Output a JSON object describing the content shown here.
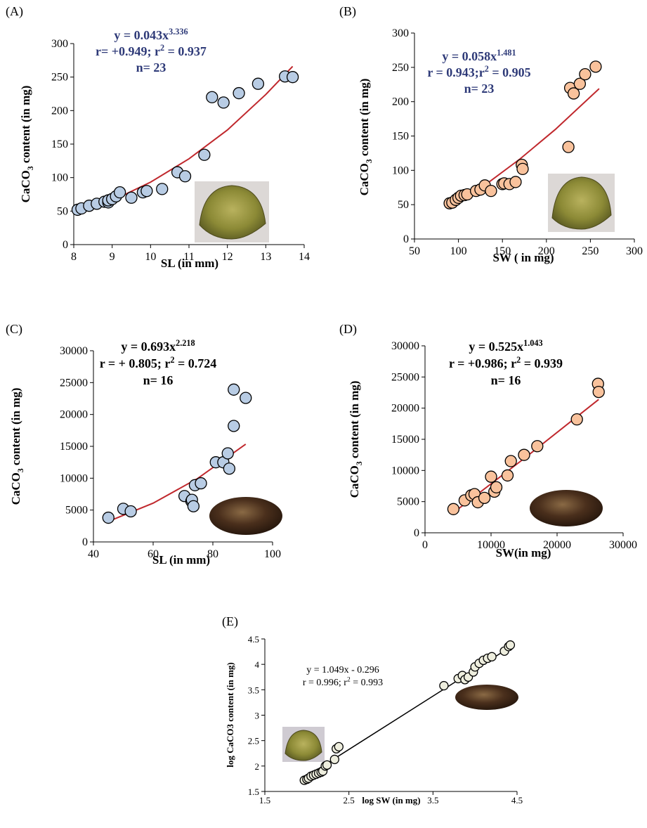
{
  "chart_data": [
    {
      "type": "scatter",
      "panel_label": "(A)",
      "annotation": [
        [
          "y = 0.043x",
          {
            "sup": "3.336"
          }
        ],
        [
          "r= +0.949; r",
          {
            "sup": "2"
          },
          " = 0.937"
        ],
        [
          "n= 23"
        ]
      ],
      "annotation_color": "#2e3a78",
      "x_label": [
        "SL (in mm)"
      ],
      "y_label": [
        "CaCO",
        {
          "sub": "3"
        },
        " content (in mg)"
      ],
      "x": [
        8.1,
        8.2,
        8.4,
        8.6,
        8.8,
        8.9,
        8.9,
        9.0,
        9.1,
        9.2,
        9.5,
        9.8,
        9.9,
        10.3,
        10.7,
        10.9,
        11.4,
        11.6,
        11.9,
        12.3,
        12.8,
        13.5,
        13.7
      ],
      "values": [
        52,
        54,
        58,
        61,
        64,
        63,
        66,
        68,
        72,
        78,
        70,
        78,
        80,
        83,
        108,
        102,
        134,
        220,
        212,
        226,
        240,
        251,
        250
      ],
      "point_color": "#b8cce4",
      "fit": {
        "color": "#c0282d",
        "x": [
          8.1,
          9,
          10,
          11,
          12,
          13,
          13.7
        ],
        "values": [
          46,
          65.6,
          93.2,
          128,
          171,
          224,
          266
        ]
      },
      "xlim": [
        8,
        14
      ],
      "ylim": [
        0,
        300
      ],
      "xticks": [
        8,
        9,
        10,
        11,
        12,
        13,
        14
      ],
      "yticks": [
        0,
        50,
        100,
        150,
        200,
        250,
        300
      ]
    },
    {
      "type": "scatter",
      "panel_label": "(B)",
      "annotation": [
        [
          "y = 0.058x",
          {
            "sup": "1.481"
          }
        ],
        [
          "r = 0.943;r",
          {
            "sup": "2"
          },
          " = 0.905"
        ],
        [
          "n= 23"
        ]
      ],
      "annotation_color": "#2e3a78",
      "x_label": [
        "SW ( in mg)"
      ],
      "y_label": [
        "CaCO",
        {
          "sub": "3"
        },
        " content (in mg)"
      ],
      "x": [
        90,
        93,
        97,
        100,
        103,
        107,
        110,
        120,
        125,
        130,
        137,
        150,
        152,
        158,
        165,
        172,
        173,
        225,
        227,
        231,
        238,
        244,
        256
      ],
      "values": [
        52,
        53,
        57,
        60,
        63,
        64,
        65,
        70,
        72,
        78,
        70,
        80,
        81,
        80,
        83,
        108,
        102,
        134,
        220,
        212,
        226,
        240,
        251
      ],
      "point_color": "#f9c29c",
      "fit": {
        "color": "#c0282d",
        "x": [
          90,
          130,
          170,
          210,
          260
        ],
        "values": [
          45.5,
          78.4,
          116.6,
          159.4,
          219
        ]
      },
      "xlim": [
        50,
        300
      ],
      "ylim": [
        0,
        300
      ],
      "xticks": [
        50,
        100,
        150,
        200,
        250,
        300
      ],
      "yticks": [
        0,
        50,
        100,
        150,
        200,
        250,
        300
      ]
    },
    {
      "type": "scatter",
      "panel_label": "(C)",
      "annotation": [
        [
          "y = 0.693x",
          {
            "sup": "2.218"
          }
        ],
        [
          "r = + 0.805; r",
          {
            "sup": "2"
          },
          " = 0.724"
        ],
        [
          "n= 16"
        ]
      ],
      "annotation_color": "#000000",
      "x_label": [
        "SL  (in mm)"
      ],
      "y_label": [
        "CaCO",
        {
          "sub": "3"
        },
        " content (in mg)"
      ],
      "x": [
        45,
        50,
        52.5,
        70.5,
        72.8,
        73,
        73.5,
        74,
        76,
        81,
        83.5,
        85,
        85.5,
        87,
        87,
        91
      ],
      "values": [
        3800,
        5200,
        4800,
        7200,
        6400,
        6600,
        5600,
        8900,
        9200,
        12500,
        12500,
        13900,
        11500,
        18200,
        23900,
        22600
      ],
      "point_color": "#b8cce4",
      "fit": {
        "color": "#c0282d",
        "x": [
          45,
          60,
          75,
          91
        ],
        "values": [
          3218,
          6085,
          9986,
          15343
        ]
      },
      "xlim": [
        40,
        100
      ],
      "ylim": [
        0,
        30000
      ],
      "xticks": [
        40,
        60,
        80,
        100
      ],
      "yticks": [
        0,
        5000,
        10000,
        15000,
        20000,
        25000,
        30000
      ]
    },
    {
      "type": "scatter",
      "panel_label": "(D)",
      "annotation": [
        [
          "y = 0.525x",
          {
            "sup": "1.043"
          }
        ],
        [
          "r = +0.986; r",
          {
            "sup": "2"
          },
          " = 0.939"
        ],
        [
          "n= 16"
        ]
      ],
      "annotation_color": "#000000",
      "x_label": [
        "SW(in mg)"
      ],
      "y_label": [
        "CaCO",
        {
          "sub": "3"
        },
        " content (in mg)"
      ],
      "x": [
        4300,
        6000,
        7000,
        7500,
        8000,
        9000,
        10000,
        10500,
        10800,
        12500,
        13000,
        15000,
        17000,
        23000,
        26200,
        26300
      ],
      "values": [
        3800,
        5200,
        6000,
        6200,
        4900,
        5600,
        9000,
        6600,
        7300,
        9200,
        11500,
        12500,
        13900,
        18200,
        23900,
        22600
      ],
      "point_color": "#f9c29c",
      "fit": {
        "color": "#c0282d",
        "x": [
          4300,
          15000,
          26300
        ],
        "values": [
          3233,
          11912,
          21390
        ]
      },
      "xlim": [
        0,
        30000
      ],
      "ylim": [
        0,
        30000
      ],
      "xticks": [
        0,
        10000,
        20000,
        30000
      ],
      "yticks": [
        0,
        5000,
        10000,
        15000,
        20000,
        25000,
        30000
      ]
    },
    {
      "type": "scatter",
      "panel_label": "(E)",
      "annotation": [
        [
          "y = 1.049x - 0.296"
        ],
        [
          "r = 0.996; r",
          {
            "sup": "2"
          },
          " = 0.993"
        ]
      ],
      "annotation_color": "#000000",
      "x_label": [
        "log SW  (in mg)"
      ],
      "y_label": [
        "log CaCO3 content (in mg)"
      ],
      "x": [
        1.97,
        2.0,
        2.02,
        2.05,
        2.08,
        2.11,
        2.14,
        2.17,
        2.19,
        2.22,
        2.24,
        2.33,
        2.35,
        2.38,
        3.63,
        3.8,
        3.85,
        3.88,
        3.92,
        3.98,
        4.0,
        4.05,
        4.1,
        4.15,
        4.2,
        4.35,
        4.4,
        4.42
      ],
      "values": [
        1.72,
        1.74,
        1.76,
        1.8,
        1.82,
        1.84,
        1.86,
        1.88,
        1.9,
        2.0,
        2.02,
        2.13,
        2.34,
        2.38,
        3.58,
        3.72,
        3.78,
        3.7,
        3.75,
        3.85,
        3.95,
        4.02,
        4.08,
        4.12,
        4.15,
        4.26,
        4.35,
        4.38
      ],
      "point_color": "#eeeede",
      "fit": {
        "color": "#000000",
        "x": [
          1.97,
          4.42
        ],
        "values": [
          1.77,
          4.34
        ]
      },
      "xlim": [
        1.5,
        4.5
      ],
      "ylim": [
        1.5,
        4.5
      ],
      "xticks": [
        1.5,
        2.5,
        3.5,
        4.5
      ],
      "yticks": [
        1.5,
        2,
        2.5,
        3,
        3.5,
        4,
        4.5
      ]
    }
  ]
}
